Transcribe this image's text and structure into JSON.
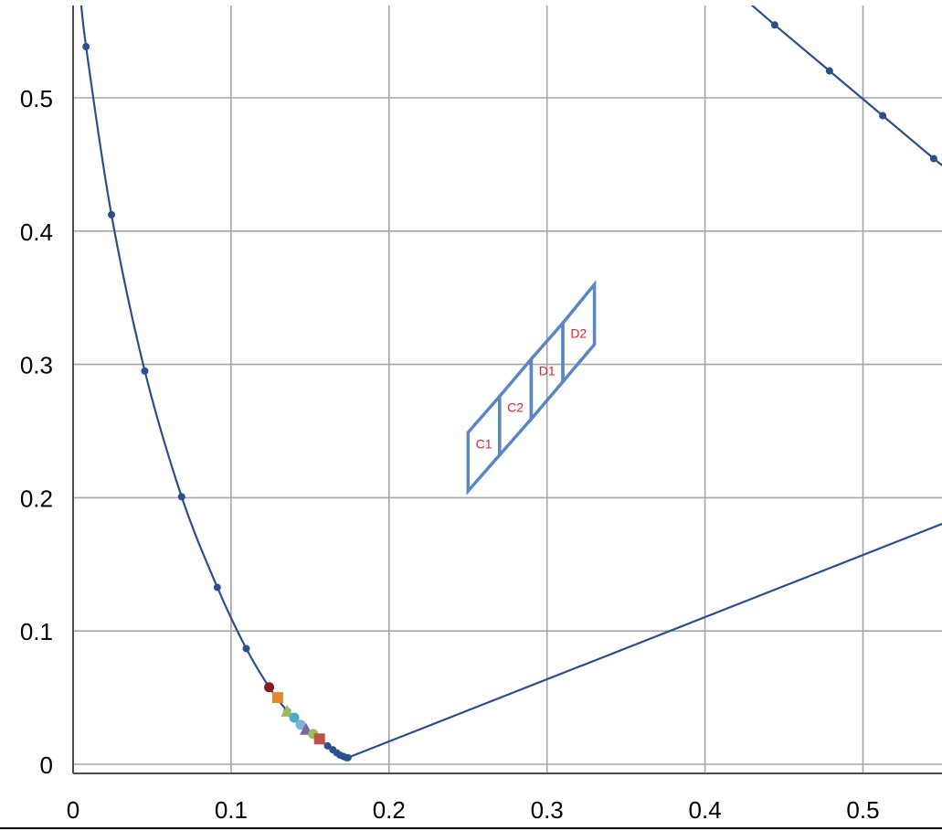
{
  "chart_data": {
    "type": "scatter",
    "title": "",
    "xlabel": "",
    "ylabel": "",
    "xlim": [
      0,
      0.55
    ],
    "ylim": [
      0,
      0.55
    ],
    "grid": true,
    "x_ticks": [
      "0",
      "0.1",
      "0.2",
      "0.3",
      "0.4",
      "0.5"
    ],
    "y_ticks": [
      "0",
      "0.1",
      "0.2",
      "0.3",
      "0.4",
      "0.5"
    ],
    "colors": {
      "curve": "#2b4f8c",
      "region_outline": "#5a86c6",
      "region_label": "#e0202a",
      "grid": "#a6a6a6"
    },
    "series": [
      {
        "kind": "spectral-locus-left",
        "points": [
          [
            0.0045,
            0.58
          ],
          [
            0.0082,
            0.5384
          ],
          [
            0.0243,
            0.4123
          ],
          [
            0.0454,
            0.295
          ],
          [
            0.0687,
            0.2007
          ],
          [
            0.0913,
            0.1327
          ],
          [
            0.1096,
            0.0868
          ],
          [
            0.1241,
            0.0578
          ],
          [
            0.1355,
            0.0399
          ],
          [
            0.144,
            0.0297
          ],
          [
            0.151,
            0.0227
          ],
          [
            0.1566,
            0.0177
          ],
          [
            0.1611,
            0.0138
          ],
          [
            0.1644,
            0.0109
          ],
          [
            0.1669,
            0.0086
          ],
          [
            0.1689,
            0.0069
          ],
          [
            0.1712,
            0.0058
          ],
          [
            0.173,
            0.0049
          ],
          [
            0.174,
            0.005
          ]
        ]
      },
      {
        "kind": "spectral-locus-top-right",
        "points": [
          [
            0.4,
            0.6
          ],
          [
            0.4441,
            0.5547
          ],
          [
            0.4788,
            0.5202
          ],
          [
            0.5125,
            0.4866
          ],
          [
            0.5448,
            0.4544
          ],
          [
            0.56,
            0.44
          ]
        ]
      },
      {
        "kind": "purple-line",
        "points": [
          [
            0.174,
            0.005
          ],
          [
            0.56,
            0.185
          ]
        ]
      }
    ],
    "markers": [
      {
        "x": 0.1241,
        "y": 0.0578,
        "shape": "circle",
        "color": "#8b1a1a"
      },
      {
        "x": 0.1295,
        "y": 0.05,
        "shape": "square",
        "color": "#e08a2c"
      },
      {
        "x": 0.1355,
        "y": 0.0399,
        "shape": "triangle",
        "color": "#9bbb59"
      },
      {
        "x": 0.14,
        "y": 0.035,
        "shape": "circle",
        "color": "#4bacc6"
      },
      {
        "x": 0.144,
        "y": 0.0297,
        "shape": "circle",
        "color": "#7fb2d6"
      },
      {
        "x": 0.1475,
        "y": 0.0262,
        "shape": "triangle",
        "color": "#8064a2"
      },
      {
        "x": 0.152,
        "y": 0.0227,
        "shape": "circle",
        "color": "#9bbb59"
      },
      {
        "x": 0.156,
        "y": 0.019,
        "shape": "square",
        "color": "#c0504d"
      }
    ],
    "regions": [
      {
        "label": "C1",
        "corners": [
          [
            0.25,
            0.205
          ],
          [
            0.27,
            0.232
          ],
          [
            0.27,
            0.276
          ],
          [
            0.25,
            0.249
          ]
        ]
      },
      {
        "label": "C2",
        "corners": [
          [
            0.27,
            0.232
          ],
          [
            0.29,
            0.259
          ],
          [
            0.29,
            0.304
          ],
          [
            0.27,
            0.276
          ]
        ]
      },
      {
        "label": "D1",
        "corners": [
          [
            0.29,
            0.259
          ],
          [
            0.31,
            0.287
          ],
          [
            0.31,
            0.331
          ],
          [
            0.29,
            0.304
          ]
        ]
      },
      {
        "label": "D2",
        "corners": [
          [
            0.31,
            0.287
          ],
          [
            0.33,
            0.315
          ],
          [
            0.33,
            0.36
          ],
          [
            0.31,
            0.331
          ]
        ]
      }
    ]
  }
}
